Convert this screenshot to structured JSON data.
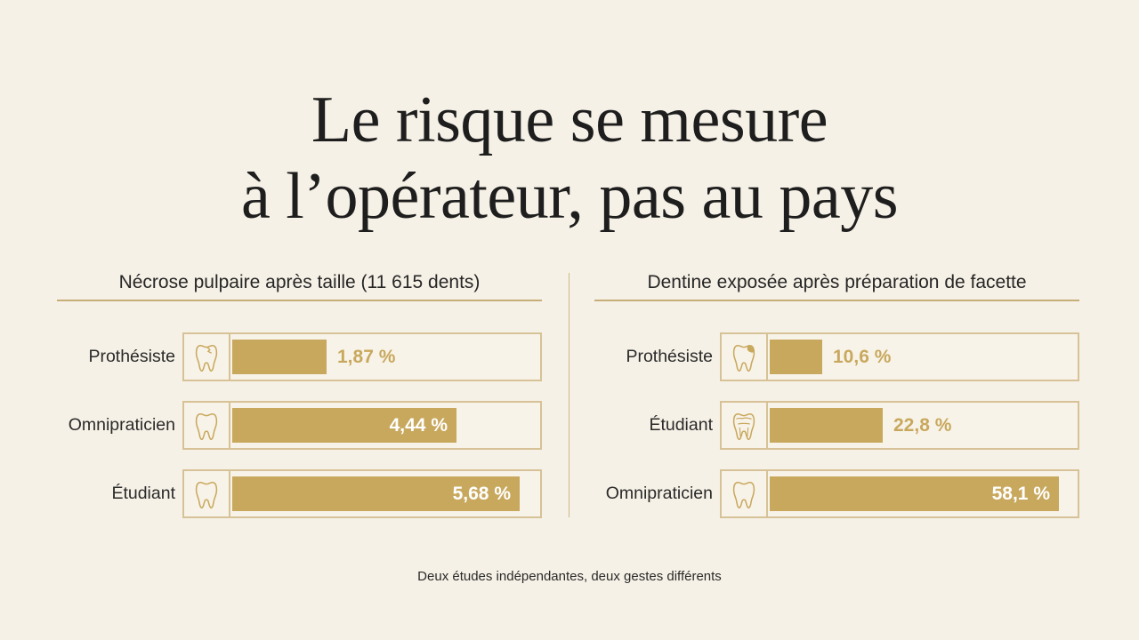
{
  "title_lines": [
    "Le risque se mesure",
    "à l’opérateur, pas au pays"
  ],
  "footnote": "Deux études indépendantes, deux gestes différents",
  "colors": {
    "background": "#f6f1e6",
    "bar": "#c8a85d",
    "frame": "#d7c297",
    "text": "#1f1f1f"
  },
  "chart_data": [
    {
      "type": "bar",
      "orientation": "horizontal",
      "title": "Nécrose pulpaire après taille (11 615 dents)",
      "unit": "%",
      "categories": [
        "Prothésiste",
        "Omnipraticien",
        "Étudiant"
      ],
      "values": [
        1.87,
        4.44,
        5.68
      ],
      "value_labels": [
        "1,87 %",
        "4,44 %",
        "5,68 %"
      ],
      "icons": [
        "tooth-chipped-icon",
        "tooth-icon",
        "tooth-icon"
      ],
      "xlim": [
        0,
        6
      ]
    },
    {
      "type": "bar",
      "orientation": "horizontal",
      "title": "Dentine exposée après préparation de facette",
      "unit": "%",
      "categories": [
        "Prothésiste",
        "Étudiant",
        "Omnipraticien"
      ],
      "values": [
        10.6,
        22.8,
        58.1
      ],
      "value_labels": [
        "10,6 %",
        "22,8 %",
        "58,1 %"
      ],
      "icons": [
        "tooth-veneer-icon",
        "tooth-layered-icon",
        "tooth-icon"
      ],
      "xlim": [
        0,
        61
      ]
    }
  ]
}
